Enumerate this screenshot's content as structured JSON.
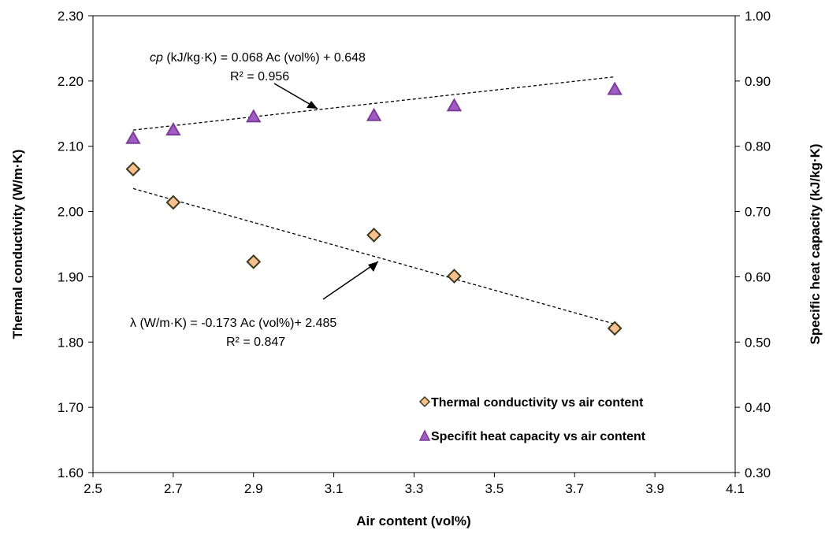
{
  "chart_data": {
    "type": "scatter",
    "xlabel": "Air content  (vol%)",
    "ylabel_left": "Thermal conductivity  (W/m·K)",
    "ylabel_right": "Specific heat capacity  (kJ/kg·K)",
    "xlim": [
      2.5,
      4.1
    ],
    "ylim_left": [
      1.6,
      2.3
    ],
    "ylim_right": [
      0.3,
      1.0
    ],
    "x_ticks": [
      "2.5",
      "2.7",
      "2.9",
      "3.1",
      "3.3",
      "3.5",
      "3.7",
      "3.9",
      "4.1"
    ],
    "y_left_ticks": [
      "1.60",
      "1.70",
      "1.80",
      "1.90",
      "2.00",
      "2.10",
      "2.20",
      "2.30"
    ],
    "y_right_ticks": [
      "0.30",
      "0.40",
      "0.50",
      "0.60",
      "0.70",
      "0.80",
      "0.90",
      "1.00"
    ],
    "grid": false,
    "legend_position": "bottom-right",
    "series": [
      {
        "name": "Thermal conductivity vs air content",
        "axis": "left",
        "marker": "diamond",
        "color": "#F9C08F",
        "edge_color": "#3A3A1E",
        "x": [
          2.6,
          2.7,
          2.9,
          3.2,
          3.4,
          3.8
        ],
        "y": [
          2.065,
          2.014,
          1.923,
          1.964,
          1.901,
          1.821
        ],
        "trendline": {
          "slope": -0.173,
          "intercept": 2.485,
          "x_range": [
            2.6,
            3.8
          ]
        }
      },
      {
        "name": "Specifit heat capacity vs air content",
        "axis": "right",
        "marker": "triangle",
        "color": "#A15BC4",
        "edge_color": "#7A3E9A",
        "x": [
          2.6,
          2.7,
          2.9,
          3.2,
          3.4,
          3.8
        ],
        "y": [
          0.812,
          0.825,
          0.845,
          0.847,
          0.862,
          0.887
        ],
        "trendline": {
          "slope": 0.068,
          "intercept": 0.648,
          "x_range": [
            2.6,
            3.8
          ]
        }
      }
    ],
    "annotations": [
      {
        "id": "cp",
        "line1_italic": "cp",
        "line1_rest": " (kJ/kg·K)   = 0.068 Ac (vol%) + 0.648",
        "line2": "R² = 0.956"
      },
      {
        "id": "lambda",
        "line1": "λ (W/m·K) = -0.173 Ac (vol%)+ 2.485",
        "line2": "R² = 0.847"
      }
    ]
  }
}
